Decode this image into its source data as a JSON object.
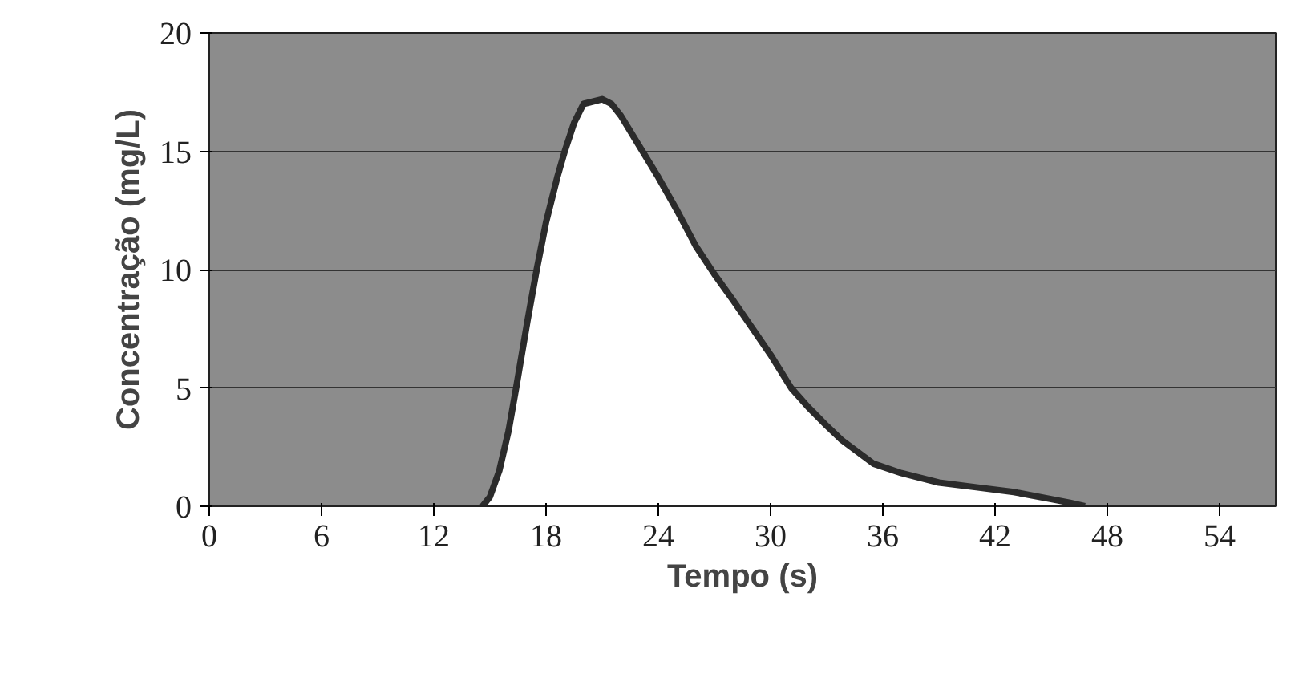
{
  "chart_data": {
    "type": "area",
    "xlabel": "Tempo (s)",
    "ylabel": "Concentração (mg/L)",
    "xlim": [
      0,
      57
    ],
    "xticks": [
      0,
      6,
      12,
      18,
      24,
      30,
      36,
      42,
      48,
      54
    ],
    "ylim": [
      0,
      20
    ],
    "yticks": [
      0,
      5,
      10,
      15,
      20
    ],
    "grid": "y",
    "x": [
      14.6,
      15,
      15.5,
      16,
      16.4,
      17,
      17.5,
      18,
      18.6,
      19,
      19.5,
      20,
      21,
      21.5,
      22,
      23,
      24,
      25,
      26,
      27,
      28,
      28.7,
      30,
      31.1,
      32,
      33,
      33.8,
      35.5,
      37,
      39,
      41,
      43,
      45,
      46,
      46.8
    ],
    "series": [
      {
        "color": "#ffffff",
        "values": [
          0,
          0.4,
          1.5,
          3.2,
          5,
          7.8,
          10,
          12,
          13.9,
          15,
          16.2,
          17,
          17.2,
          17,
          16.5,
          15.2,
          13.9,
          12.5,
          11,
          9.8,
          8.7,
          7.9,
          6.4,
          5,
          4.2,
          3.4,
          2.8,
          1.8,
          1.4,
          1.0,
          0.8,
          0.6,
          0.3,
          0.15,
          0
        ]
      }
    ]
  }
}
